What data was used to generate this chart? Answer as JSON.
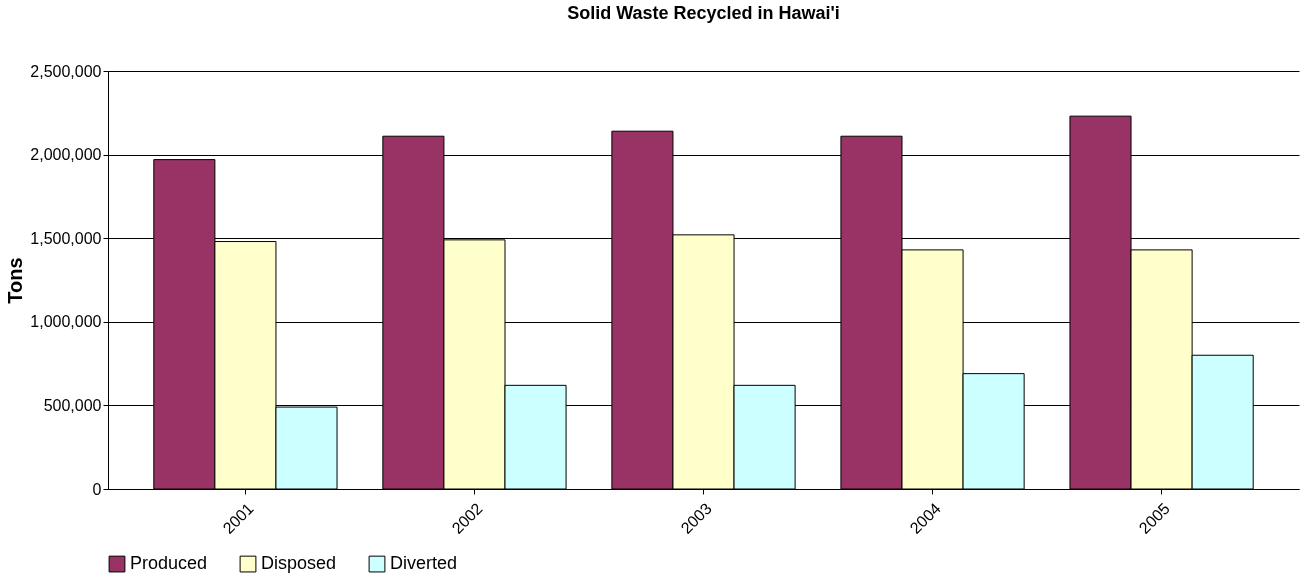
{
  "chart_data": {
    "type": "bar",
    "title": "Solid Waste Recycled in Hawai'i",
    "ylabel": "Tons",
    "categories": [
      "2001",
      "2002",
      "2003",
      "2004",
      "2005"
    ],
    "series": [
      {
        "name": "Produced",
        "color": "#993366",
        "values": [
          1970000,
          2110000,
          2140000,
          2110000,
          2230000
        ]
      },
      {
        "name": "Disposed",
        "color": "#ffffcc",
        "values": [
          1480000,
          1490000,
          1520000,
          1430000,
          1430000
        ]
      },
      {
        "name": "Diverted",
        "color": "#ccffff",
        "values": [
          490000,
          620000,
          620000,
          690000,
          800000
        ]
      }
    ],
    "ylim": [
      0,
      2500000
    ],
    "yticks": [
      {
        "value": 0,
        "label": "0"
      },
      {
        "value": 500000,
        "label": "500,000"
      },
      {
        "value": 1000000,
        "label": "1,000,000"
      },
      {
        "value": 1500000,
        "label": "1,500,000"
      },
      {
        "value": 2000000,
        "label": "2,000,000"
      },
      {
        "value": 2500000,
        "label": "2,500,000"
      }
    ],
    "grid": "y",
    "legend": "bottom"
  }
}
